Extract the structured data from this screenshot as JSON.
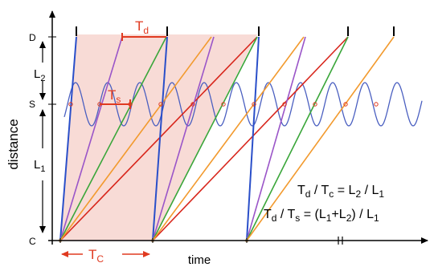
{
  "axes": {
    "y_label": "distance",
    "x_label": "time",
    "tick_C": "C",
    "tick_S": "S",
    "tick_D": "D"
  },
  "annotations": {
    "Td_main": "T",
    "Td_sub": "d",
    "Ts_main": "T",
    "Ts_sub": "s",
    "Tc_main": "T",
    "Tc_sub": "C",
    "L1_main": "L",
    "L1_sub": "1",
    "L2_main": "L",
    "L2_sub": "2"
  },
  "equations": {
    "eq1": {
      "a_main": "T",
      "a_sub": "d",
      "sep1": " / ",
      "b_main": "T",
      "b_sub": "c",
      "eq": " = ",
      "c_main": "L",
      "c_sub": "2",
      "sep2": " / ",
      "d_main": "L",
      "d_sub": "1"
    },
    "eq2": {
      "a_main": "T",
      "a_sub": "d",
      "sep1": " / ",
      "b_main": "T",
      "b_sub": "s",
      "eq": " = (",
      "c_main": "L",
      "c_sub": "1",
      "plus": "+",
      "d_main": "L",
      "d_sub": "2",
      "close": ") / ",
      "e_main": "L",
      "e_sub": "1"
    }
  },
  "colors": {
    "blue": "#2a4fc9",
    "purple": "#9a55c8",
    "green": "#3aa63a",
    "red": "#d8261c",
    "orange": "#f29a2e",
    "shade": "#f7d7d1",
    "sine": "#4a5fc0",
    "annot": "#e03a20"
  }
}
